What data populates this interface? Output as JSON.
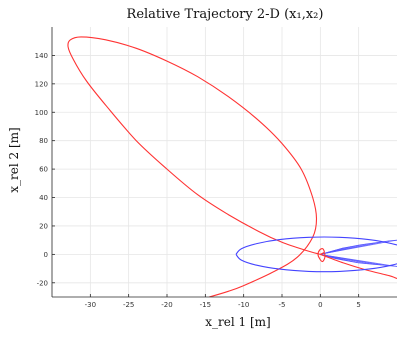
{
  "chart_data": {
    "type": "line",
    "title": "Relative Trajectory 2-D (x₁,x₂)",
    "xlabel": "x_rel 1 [m]",
    "ylabel": "x_rel 2 [m]",
    "xlim": [
      -35,
      10
    ],
    "ylim": [
      -30,
      160
    ],
    "xticks": [
      -30,
      -25,
      -20,
      -15,
      -10,
      -5,
      0,
      5
    ],
    "yticks": [
      -20,
      0,
      20,
      40,
      60,
      80,
      100,
      120,
      140
    ],
    "grid": true,
    "series": [
      {
        "color": "#ff3333",
        "style": "solid",
        "points": [
          [
            0,
            0
          ],
          [
            -2,
            3
          ],
          [
            -5,
            8.5
          ],
          [
            -8,
            16
          ],
          [
            -12,
            28
          ],
          [
            -16,
            42
          ],
          [
            -20,
            60
          ],
          [
            -24,
            80
          ],
          [
            -28,
            105
          ],
          [
            -30.5,
            122
          ],
          [
            -32.2,
            137
          ],
          [
            -32.9,
            146
          ],
          [
            -32.6,
            151
          ],
          [
            -31.2,
            153
          ],
          [
            -28,
            151
          ],
          [
            -24,
            145
          ],
          [
            -20,
            136
          ],
          [
            -16,
            125
          ],
          [
            -12,
            111
          ],
          [
            -8,
            94
          ],
          [
            -5,
            78
          ],
          [
            -2.5,
            60
          ],
          [
            -1,
            40
          ],
          [
            -0.5,
            25
          ],
          [
            -1,
            12
          ],
          [
            -3,
            -2
          ],
          [
            -6,
            -12
          ],
          [
            -10,
            -22
          ],
          [
            -12,
            -26
          ],
          [
            -14.5,
            -30
          ]
        ]
      },
      {
        "color": "#ff3333",
        "style": "solid",
        "points": [
          [
            0,
            0
          ],
          [
            3,
            -6
          ],
          [
            6,
            -11
          ],
          [
            9,
            -15
          ],
          [
            10,
            -17
          ]
        ]
      },
      {
        "color": "#ff3333",
        "style": "solid",
        "points": [
          [
            0,
            0
          ],
          [
            0.5,
            1.5
          ],
          [
            0.3,
            4
          ],
          [
            -0.1,
            3
          ],
          [
            -0.3,
            0
          ],
          [
            -0.1,
            -3
          ],
          [
            0.3,
            -5
          ],
          [
            0.6,
            -2
          ],
          [
            0.5,
            1
          ],
          [
            0,
            0
          ]
        ]
      },
      {
        "color": "#4444ff",
        "style": "solid",
        "points": [
          [
            -11,
            0
          ],
          [
            -10.3,
            4
          ],
          [
            -8.3,
            7.6
          ],
          [
            -5.3,
            10.4
          ],
          [
            -1.5,
            12
          ],
          [
            2.5,
            12
          ],
          [
            6.3,
            10.4
          ],
          [
            9.3,
            7.6
          ],
          [
            11.3,
            4
          ],
          [
            12,
            0
          ],
          [
            11.3,
            -4
          ],
          [
            9.3,
            -7.6
          ],
          [
            6.3,
            -10.4
          ],
          [
            2.5,
            -12
          ],
          [
            -1.5,
            -12
          ],
          [
            -5.3,
            -10.4
          ],
          [
            -8.3,
            -7.6
          ],
          [
            -10.3,
            -4
          ],
          [
            -11,
            0
          ]
        ]
      }
    ],
    "fan": {
      "color": "#5555ff",
      "apex": [
        0,
        0
      ],
      "upper": [
        [
          1,
          1.5
        ],
        [
          2,
          3
        ],
        [
          3,
          4.5
        ],
        [
          4,
          5.5
        ],
        [
          5,
          6.5
        ],
        [
          6,
          7.3
        ],
        [
          7,
          8
        ],
        [
          8,
          8.8
        ],
        [
          9,
          9.5
        ],
        [
          10,
          10
        ]
      ],
      "lower": [
        [
          1,
          -1.5
        ],
        [
          2,
          -3
        ],
        [
          3,
          -4
        ],
        [
          4,
          -5
        ],
        [
          5,
          -6
        ],
        [
          6,
          -6.5
        ],
        [
          7,
          -7
        ],
        [
          8,
          -7.5
        ],
        [
          9,
          -8
        ],
        [
          10,
          -8.5
        ]
      ]
    }
  }
}
